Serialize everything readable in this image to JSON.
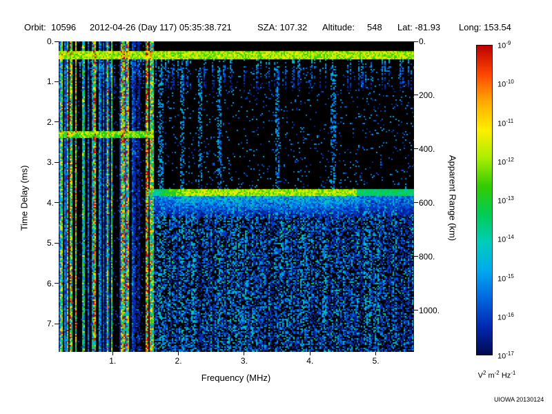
{
  "header": {
    "fields": [
      "Orbit:  10596",
      "2012-04-26 (Day 117) 05:35:38.721",
      "SZA: 107.32",
      "Altitude:     548",
      "Lat: -81.93",
      "Long: 153.54"
    ]
  },
  "credit": "UIOWA 20130124",
  "chart_data": {
    "type": "heatmap",
    "x": {
      "label": "Frequency (MHz)",
      "min": 0.18,
      "max": 5.58,
      "ticks": [
        1,
        2,
        3,
        4,
        5
      ],
      "tick_labels": [
        "1.",
        "2.",
        "3.",
        "4.",
        "5."
      ]
    },
    "y_left": {
      "label": "Time Delay (ms)",
      "min": 0,
      "max": 7.7,
      "ticks": [
        0,
        1,
        2,
        3,
        4,
        5,
        6,
        7
      ],
      "tick_labels": [
        "0.",
        "1.",
        "2.",
        "3.",
        "4.",
        "5.",
        "6.",
        "7."
      ]
    },
    "y_right": {
      "label": "Apparent Range (km)",
      "km_per_ms": 150,
      "ticks_km": [
        0,
        200,
        400,
        600,
        800,
        1000
      ],
      "tick_labels": [
        "0.",
        "200.",
        "400.",
        "600.",
        "800.",
        "1000."
      ]
    },
    "colorbar": {
      "scale_base": "10",
      "exponents": [
        "-9",
        "-10",
        "-11",
        "-12",
        "-13",
        "-14",
        "-15",
        "-16",
        "-17"
      ],
      "unit_parts": [
        {
          "base": "V",
          "exp": "2"
        },
        {
          "base": "m",
          "exp": "-2"
        },
        {
          "base": "Hz",
          "exp": "-1"
        }
      ],
      "gradient": [
        "#bb0000",
        "#ff4400",
        "#ffaa00",
        "#ffee00",
        "#aaee00",
        "#33cc00",
        "#00cc55",
        "#00ccbb",
        "#00aaee",
        "#0066e0",
        "#0028b0",
        "#000a50"
      ]
    },
    "features": {
      "seed": 1234567,
      "background": "#000000",
      "top_band": {
        "delay_ms": 0.35,
        "halfwidth_ms": 0.1,
        "intensity": 0.58
      },
      "left_interference": {
        "freq_max_mhz": 1.62,
        "gap_mhz": [
          1.34,
          1.47
        ],
        "green_band_delay_ms": 2.3
      },
      "surface_echo": {
        "delay_ms": 3.75,
        "halfwidth_ms": 0.09,
        "freq_min_mhz": 1.55,
        "glow_ms": 0.7
      },
      "diffuse_scatter": {
        "freq_min_mhz": 1.55,
        "delay_min_ms": 3.9
      },
      "vertical_streaks_mhz": [
        1.73,
        2.06,
        2.33,
        2.62,
        3.5,
        4.35
      ]
    }
  }
}
